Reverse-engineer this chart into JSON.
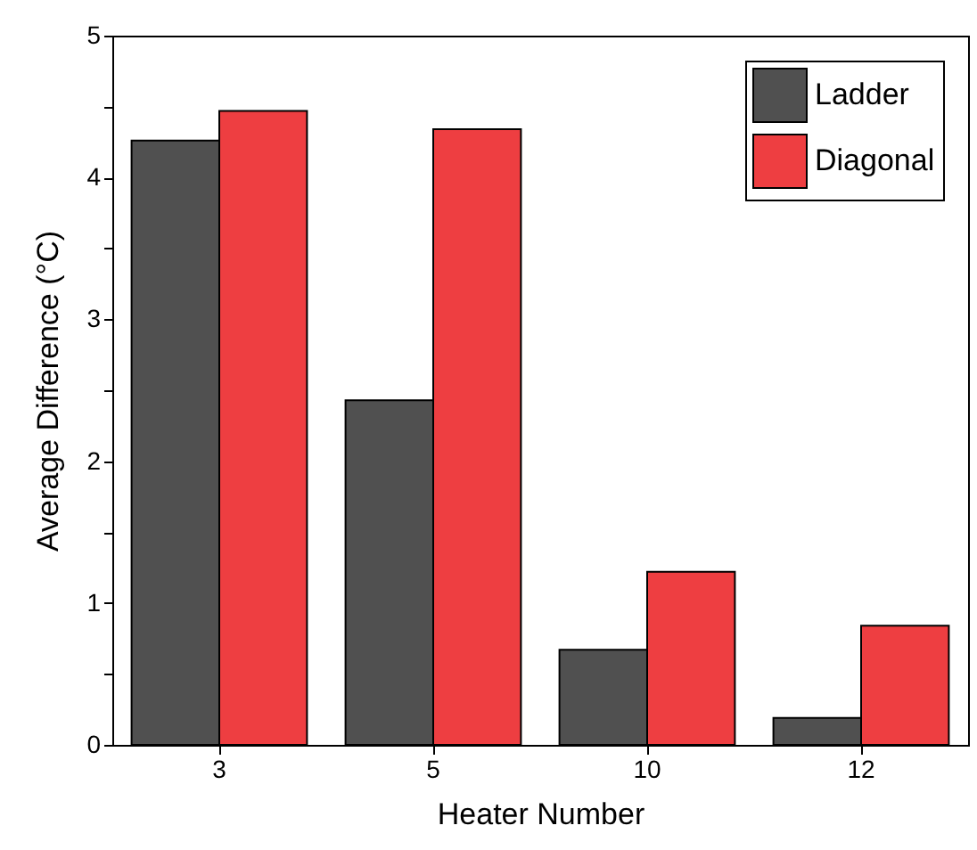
{
  "chart_data": {
    "type": "bar",
    "xlabel": "Heater Number",
    "ylabel": "Average Difference (°C)",
    "categories": [
      "3",
      "5",
      "10",
      "12"
    ],
    "series": [
      {
        "name": "Ladder",
        "color": "#505050",
        "values": [
          4.26,
          2.43,
          0.67,
          0.19
        ]
      },
      {
        "name": "Diagonal",
        "color": "#ee3e41",
        "values": [
          4.47,
          4.34,
          1.22,
          0.84
        ]
      }
    ],
    "ylim": [
      0,
      5
    ],
    "yticks": [
      0,
      {
        "value": 0.5,
        "label": null
      },
      1,
      {
        "value": 1.5,
        "label": null
      },
      2,
      {
        "value": 2.5,
        "label": null
      },
      3,
      {
        "value": 3.5,
        "label": null
      },
      4,
      {
        "value": 4.5,
        "label": null
      },
      5
    ],
    "grid": false,
    "legend": "top right"
  }
}
